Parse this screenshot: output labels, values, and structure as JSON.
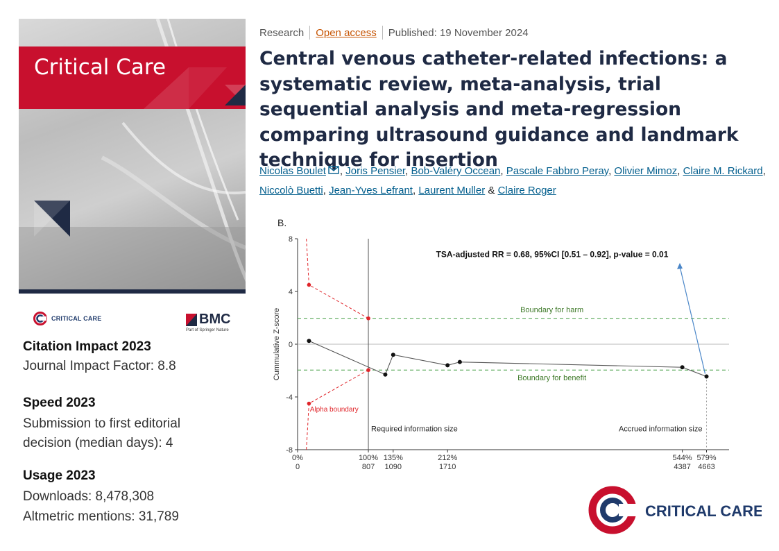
{
  "cover": {
    "journal_title": "Critical Care"
  },
  "logos": {
    "critical_care_small": "CRITICAL CARE",
    "bmc": "BMC",
    "bmc_tagline": "Part of Springer Nature",
    "critical_care_big": "CRITICAL CARE"
  },
  "metrics": [
    {
      "heading": "Citation Impact 2023",
      "lines": [
        "Journal Impact Factor: 8.8"
      ]
    },
    {
      "heading": "Speed 2023",
      "lines": [
        "Submission to first editorial",
        "decision (median days): 4"
      ]
    },
    {
      "heading": "Usage 2023",
      "lines": [
        "Downloads: 8,478,308",
        "Altmetric mentions: 31,789"
      ]
    }
  ],
  "article": {
    "type": "Research",
    "access": "Open access",
    "published": "Published: 19 November 2024",
    "title": "Central venous catheter-related infections: a systematic review, meta-analysis, trial sequential analysis and meta-regression comparing ultrasound guidance and landmark technique for insertion",
    "authors": [
      "Nicolas Boulet",
      "Joris Pensier",
      "Bob-Valéry Occean",
      "Pascale Fabbro Peray",
      "Olivier Mimoz",
      "Claire M. Rickard",
      "Niccolò Buetti",
      "Jean-Yves Lefrant",
      "Laurent Muller",
      "Claire Roger"
    ],
    "author_separator": ", ",
    "author_last_separator": " & "
  },
  "chart_data": {
    "type": "line",
    "panel_label": "B.",
    "ylabel": "Cummulative Z-score",
    "ylim": [
      -8,
      8
    ],
    "yticks": [
      8,
      4,
      0,
      -4,
      -8
    ],
    "annotation": "TSA-adjusted RR = 0.68, 95%CI [0.51 – 0.92], p-value = 0.01",
    "x_ticks": [
      {
        "pct": "0%",
        "n": "0",
        "value": 0
      },
      {
        "pct": "100%",
        "n": "807",
        "value": 807
      },
      {
        "pct": "135%",
        "n": "1090",
        "value": 1090
      },
      {
        "pct": "212%",
        "n": "1710",
        "value": 1710
      },
      {
        "pct": "544%",
        "n": "4387",
        "value": 4387
      },
      {
        "pct": "579%",
        "n": "4663",
        "value": 4663
      }
    ],
    "boundaries": {
      "harm_label": "Boundary for harm",
      "harm": 1.96,
      "benefit_label": "Boundary for benefit",
      "benefit": -1.96
    },
    "alpha_label": "Alpha boundary",
    "alpha_upper": [
      {
        "x": 100,
        "y": 8
      },
      {
        "x": 130,
        "y": 4.5
      },
      {
        "x": 807,
        "y": 1.96
      }
    ],
    "alpha_lower": [
      {
        "x": 100,
        "y": -8
      },
      {
        "x": 130,
        "y": -4.5
      },
      {
        "x": 807,
        "y": -1.96
      }
    ],
    "ris_label": "Required information size",
    "ris": 807,
    "ais_label": "Accrued information size",
    "ais": 4663,
    "series": [
      {
        "points": [
          {
            "x": 130,
            "y": 0.25
          },
          {
            "x": 1000,
            "y": -2.3
          },
          {
            "x": 1090,
            "y": -0.8
          },
          {
            "x": 1710,
            "y": -1.6
          },
          {
            "x": 1850,
            "y": -1.35
          },
          {
            "x": 4387,
            "y": -1.75
          },
          {
            "x": 4663,
            "y": -2.45
          }
        ]
      }
    ]
  },
  "colors": {
    "brand_red": "#c8102e",
    "navy": "#1f2a44",
    "link": "#025e8d",
    "open_access": "#c65301",
    "alpha_red": "#e0252a",
    "boundary_green": "#3f9a3f"
  }
}
